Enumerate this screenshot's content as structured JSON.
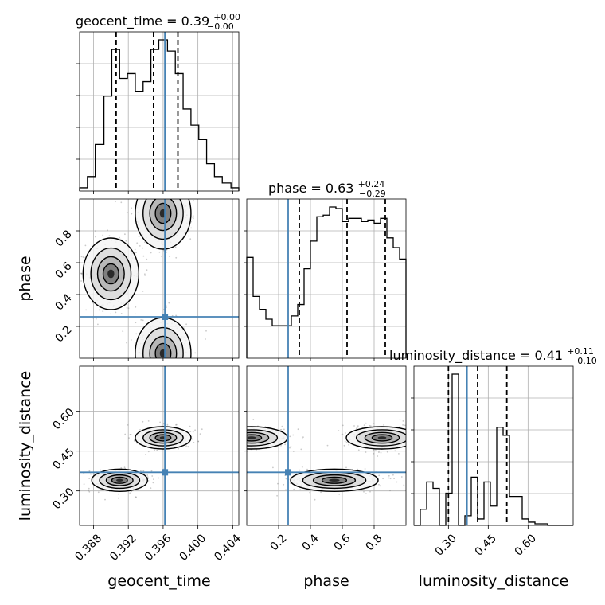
{
  "chart_data": {
    "type": "corner",
    "parameters": [
      "geocent_time",
      "phase",
      "luminosity_distance"
    ],
    "truths": {
      "geocent_time": 0.3962,
      "phase": 0.26,
      "luminosity_distance": 0.37
    },
    "truth_color": "#4682b4",
    "titles": {
      "geocent_time": {
        "prefix": "geocent_time = 0.39",
        "upper": "+0.00",
        "lower": "−0.00"
      },
      "phase": {
        "prefix": "phase = 0.63",
        "upper": "+0.24",
        "lower": "−0.29"
      },
      "luminosity_distance": {
        "prefix": "luminosity_distance = 0.41",
        "upper": "+0.11",
        "lower": "−0.10"
      }
    },
    "axes": {
      "geocent_time": {
        "range": [
          0.3864,
          0.4047
        ],
        "ticks": [
          0.388,
          0.392,
          0.396,
          0.4,
          0.404
        ],
        "tick_labels": [
          "0.388",
          "0.392",
          "0.396",
          "0.400",
          "0.404"
        ],
        "label": "geocent_time"
      },
      "phase": {
        "range": [
          0.0,
          1.0
        ],
        "ticks": [
          0.2,
          0.4,
          0.6,
          0.8
        ],
        "tick_labels": [
          "0.2",
          "0.4",
          "0.6",
          "0.8"
        ],
        "label": "phase"
      },
      "luminosity_distance": {
        "range": [
          0.17,
          0.77
        ],
        "ticks": [
          0.3,
          0.45,
          0.6
        ],
        "tick_labels": [
          "0.30",
          "0.45",
          "0.60"
        ],
        "label": "luminosity_distance"
      }
    },
    "hist_1d": {
      "geocent_time": {
        "bins": [
          0.3864,
          0.3873,
          0.3882,
          0.3892,
          0.3901,
          0.391,
          0.3919,
          0.3928,
          0.3937,
          0.3946,
          0.3955,
          0.3965,
          0.3974,
          0.3983,
          0.3992,
          0.4001,
          0.401,
          0.4019,
          0.4028,
          0.4038,
          0.4047
        ],
        "counts": [
          2,
          9,
          29,
          59,
          88,
          70,
          73,
          62,
          68,
          88,
          94,
          87,
          73,
          51,
          41,
          32,
          17,
          9,
          5,
          2
        ],
        "quantile_lines": [
          0.3906,
          0.3949,
          0.3977
        ]
      },
      "phase": {
        "bins": [
          0.0,
          0.04,
          0.08,
          0.12,
          0.16,
          0.2,
          0.24,
          0.28,
          0.32,
          0.36,
          0.4,
          0.44,
          0.48,
          0.52,
          0.56,
          0.6,
          0.64,
          0.68,
          0.72,
          0.76,
          0.8,
          0.84,
          0.88,
          0.92,
          0.96,
          1.0
        ],
        "counts": [
          62,
          38,
          30,
          24,
          20,
          20,
          20,
          26,
          33,
          55,
          72,
          87,
          88,
          93,
          92,
          84,
          86,
          86,
          84,
          85,
          83,
          86,
          74,
          68,
          61
        ],
        "quantile_lines": [
          0.33,
          0.63,
          0.87
        ]
      },
      "luminosity_distance": {
        "bins": [
          0.17,
          0.194,
          0.218,
          0.242,
          0.266,
          0.29,
          0.314,
          0.338,
          0.362,
          0.386,
          0.41,
          0.434,
          0.458,
          0.482,
          0.506,
          0.53,
          0.554,
          0.578,
          0.602,
          0.626,
          0.65,
          0.674,
          0.698,
          0.722,
          0.746,
          0.77
        ],
        "counts": [
          0,
          10,
          27,
          23,
          0,
          20,
          94,
          0,
          6,
          30,
          4,
          27,
          12,
          61,
          56,
          18,
          18,
          4,
          2,
          1,
          1,
          0,
          0,
          0,
          0
        ],
        "quantile_lines": [
          0.3,
          0.41,
          0.52
        ]
      }
    },
    "hist_2d": [
      {
        "x": "geocent_time",
        "y": "phase",
        "modes": [
          {
            "x": 0.39,
            "y": 0.53
          },
          {
            "x": 0.396,
            "y": 0.91
          },
          {
            "x": 0.396,
            "y": 0.03
          }
        ]
      },
      {
        "x": "geocent_time",
        "y": "luminosity_distance",
        "modes": [
          {
            "x": 0.391,
            "y": 0.34
          },
          {
            "x": 0.396,
            "y": 0.5
          }
        ]
      },
      {
        "x": "phase",
        "y": "luminosity_distance",
        "modes": [
          {
            "x": 0.55,
            "y": 0.34
          },
          {
            "x": 0.85,
            "y": 0.5
          },
          {
            "x": 0.03,
            "y": 0.5
          }
        ]
      }
    ],
    "grid": true
  }
}
